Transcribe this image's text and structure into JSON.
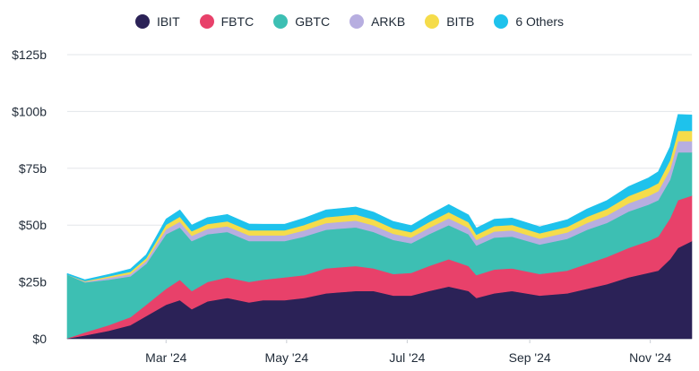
{
  "chart_data": {
    "type": "area",
    "stacked": true,
    "title": "",
    "xlabel": "",
    "ylabel": "",
    "ylim": [
      0,
      125
    ],
    "y_unit": "b",
    "y_ticks": [
      0,
      25,
      50,
      75,
      100,
      125
    ],
    "y_tick_labels": [
      "$0",
      "$25b",
      "$50b",
      "$75b",
      "$100b",
      "$125b"
    ],
    "x_ticks": [
      {
        "date": "2024-03-01",
        "label": "Mar '24"
      },
      {
        "date": "2024-05-01",
        "label": "May '24"
      },
      {
        "date": "2024-07-01",
        "label": "Jul '24"
      },
      {
        "date": "2024-09-01",
        "label": "Sep '24"
      },
      {
        "date": "2024-11-01",
        "label": "Nov '24"
      }
    ],
    "xlim": [
      "2024-01-11",
      "2024-11-22"
    ],
    "grid": true,
    "legend_position": "top-center",
    "x": [
      "2024-01-11",
      "2024-01-20",
      "2024-02-01",
      "2024-02-12",
      "2024-02-20",
      "2024-03-01",
      "2024-03-08",
      "2024-03-14",
      "2024-03-22",
      "2024-04-01",
      "2024-04-12",
      "2024-04-19",
      "2024-04-30",
      "2024-05-10",
      "2024-05-21",
      "2024-06-05",
      "2024-06-14",
      "2024-06-24",
      "2024-07-03",
      "2024-07-12",
      "2024-07-22",
      "2024-08-01",
      "2024-08-05",
      "2024-08-14",
      "2024-08-23",
      "2024-09-06",
      "2024-09-20",
      "2024-09-30",
      "2024-10-10",
      "2024-10-21",
      "2024-10-31",
      "2024-11-05",
      "2024-11-11",
      "2024-11-15",
      "2024-11-22"
    ],
    "series": [
      {
        "name": "IBIT",
        "color": "#2b2257",
        "values": [
          0.1,
          1.5,
          3.5,
          6,
          10,
          15,
          17,
          13,
          16.5,
          18,
          16,
          17,
          17,
          18,
          20,
          21,
          21,
          19,
          19,
          21,
          23,
          21,
          18,
          20,
          21,
          19,
          20,
          22,
          24,
          27,
          29,
          30,
          35,
          40,
          43
        ]
      },
      {
        "name": "FBTC",
        "color": "#e8416a",
        "values": [
          0.1,
          1.3,
          2.5,
          3.5,
          5,
          7,
          9,
          8,
          8.5,
          9,
          9,
          9,
          10,
          10,
          11,
          11,
          10,
          9.5,
          10,
          11,
          12,
          11,
          10,
          10.5,
          10,
          9.5,
          10,
          11,
          12,
          13,
          14,
          15,
          18,
          21,
          20
        ]
      },
      {
        "name": "GBTC",
        "color": "#3dbfb3",
        "values": [
          28,
          22,
          20,
          18,
          18,
          24,
          23,
          22,
          21,
          20,
          18,
          17,
          16,
          17,
          17,
          17,
          16,
          15,
          13,
          14,
          15,
          14,
          13,
          14,
          14,
          13,
          14,
          15,
          15,
          16,
          16,
          16,
          17,
          21,
          19
        ]
      },
      {
        "name": "ARKB",
        "color": "#b7aee0",
        "values": [
          0,
          0.3,
          0.8,
          1,
          1.3,
          2.2,
          2.5,
          2.3,
          2.4,
          2.5,
          2.5,
          2.5,
          2.5,
          2.7,
          2.9,
          3,
          2.9,
          2.7,
          2.6,
          2.8,
          3,
          2.8,
          2.5,
          2.7,
          2.7,
          2.6,
          2.8,
          3,
          3.2,
          3.6,
          3.8,
          4,
          4.5,
          5,
          5
        ]
      },
      {
        "name": "BITB",
        "color": "#f5dc4a",
        "values": [
          0,
          0.3,
          0.7,
          1,
          1.2,
          2,
          2.2,
          2,
          2.1,
          2.2,
          2.2,
          2.2,
          2.2,
          2.4,
          2.6,
          2.7,
          2.6,
          2.4,
          2.3,
          2.5,
          2.7,
          2.5,
          2.3,
          2.4,
          2.4,
          2.3,
          2.5,
          2.7,
          2.9,
          3.2,
          3.4,
          3.5,
          4,
          4.5,
          4.5
        ]
      },
      {
        "name": "6 Others",
        "color": "#1ec2ec",
        "values": [
          0.5,
          0.6,
          0.8,
          1.2,
          1.5,
          2.5,
          3,
          2.7,
          2.8,
          3,
          2.8,
          2.7,
          2.7,
          3,
          3.2,
          3.3,
          3.2,
          3,
          2.9,
          3.1,
          3.4,
          3.2,
          2.9,
          3,
          3,
          2.9,
          3.1,
          3.4,
          3.7,
          4.2,
          4.6,
          5,
          6,
          7.2,
          7
        ]
      }
    ]
  }
}
